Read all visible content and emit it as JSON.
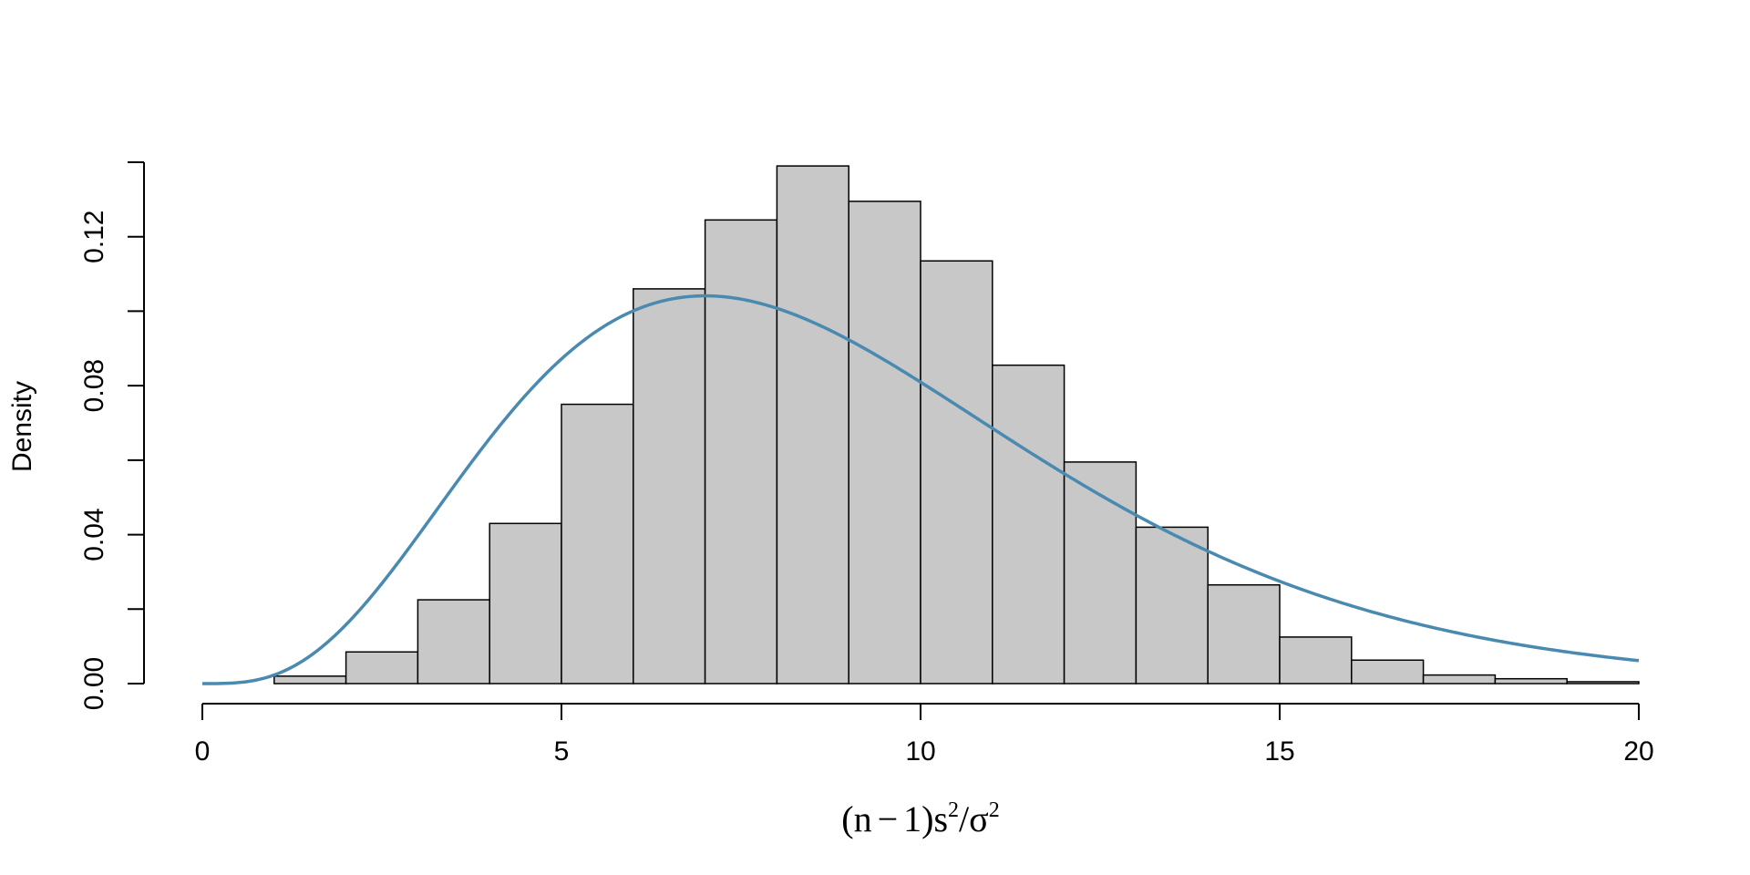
{
  "chart_data": {
    "type": "bar",
    "title": "",
    "xlabel": {
      "parts": [
        "(n",
        "−",
        "1)s",
        "2",
        "/σ",
        "2"
      ]
    },
    "ylabel": "Density",
    "xlim": [
      0,
      20
    ],
    "ylim": [
      0,
      0.14
    ],
    "x_ticks": [
      0,
      5,
      10,
      15,
      20
    ],
    "x_tick_labels": [
      "0",
      "5",
      "10",
      "15",
      "20"
    ],
    "y_ticks": [
      0,
      0.02,
      0.04,
      0.06,
      0.08,
      0.1,
      0.12,
      0.14
    ],
    "y_tick_labels": [
      "0.00",
      "",
      "0.04",
      "",
      "0.08",
      "",
      "0.12",
      ""
    ],
    "bin_width": 1,
    "bins_start": [
      0,
      1,
      2,
      3,
      4,
      5,
      6,
      7,
      8,
      9,
      10,
      11,
      12,
      13,
      14,
      15,
      16,
      17,
      18,
      19
    ],
    "densities": [
      0.0,
      0.002,
      0.0085,
      0.0225,
      0.043,
      0.075,
      0.106,
      0.1245,
      0.139,
      0.1295,
      0.1135,
      0.0855,
      0.0595,
      0.042,
      0.0265,
      0.0125,
      0.0063,
      0.0023,
      0.0013,
      0.0005
    ],
    "bar_fill": "#c8c8c8",
    "bar_stroke": "#000000",
    "curve": {
      "distribution": "chi-square",
      "df": 9,
      "color": "#4a8ab0"
    },
    "grid": false
  }
}
